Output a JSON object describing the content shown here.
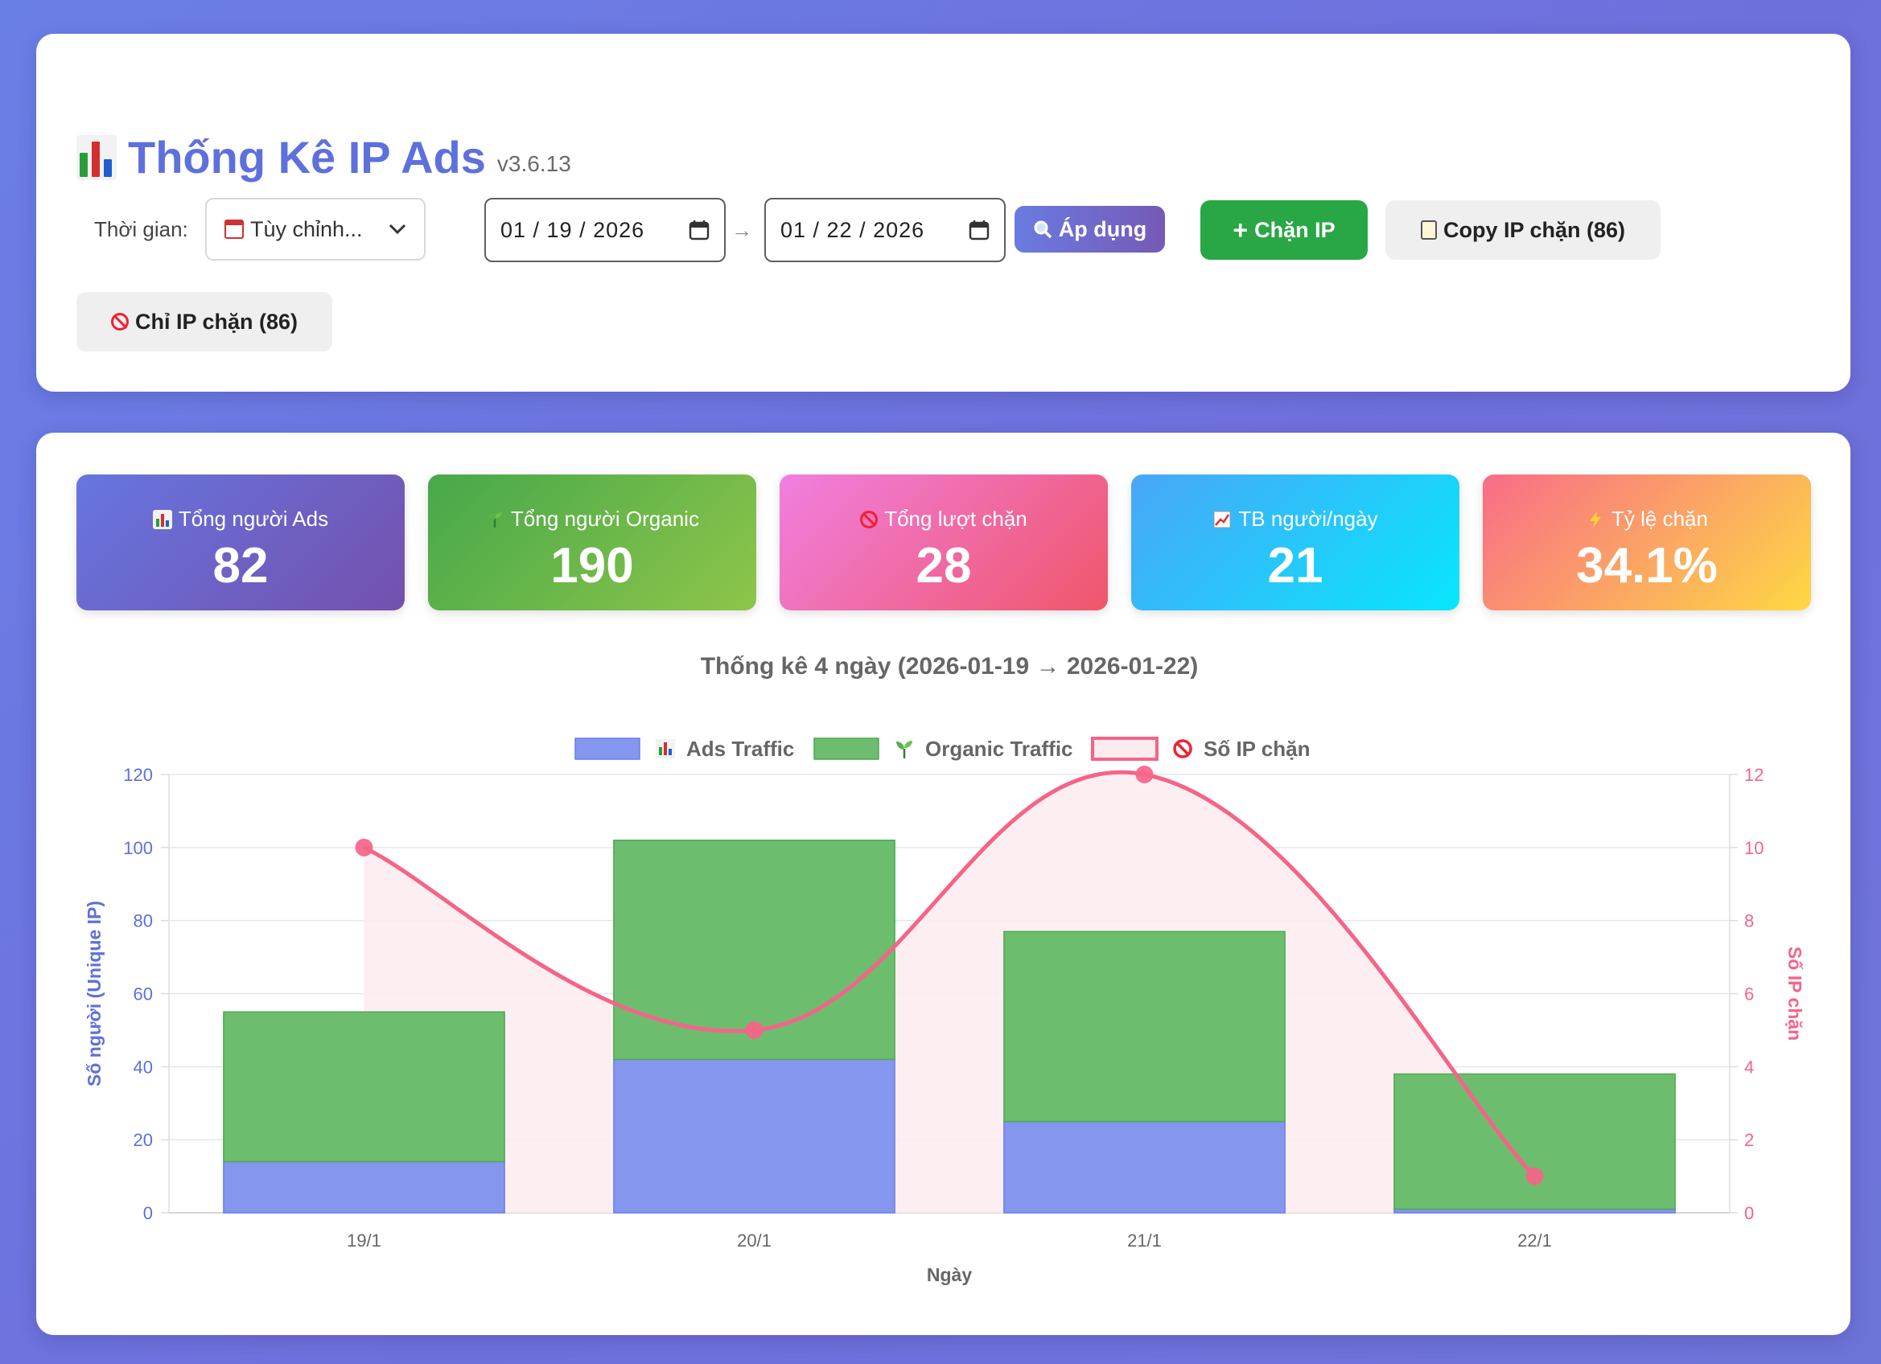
{
  "header": {
    "title": "Thống Kê IP Ads",
    "version": "v3.6.13",
    "time_label": "Thời gian:",
    "range_select": "Tùy chỉnh...",
    "date_from": "01 / 19 / 2026",
    "date_to": "01 / 22 / 2026",
    "apply_label": "Áp dụng",
    "block_ip_label": "Chặn IP",
    "copy_label": "Copy IP chặn (86)",
    "only_blocked_label": "Chỉ IP chặn (86)"
  },
  "stats": [
    {
      "label": "Tổng người Ads",
      "value": "82",
      "icon": "bar-chart-icon"
    },
    {
      "label": "Tổng người Organic",
      "value": "190",
      "icon": "seedling-icon"
    },
    {
      "label": "Tổng lượt chặn",
      "value": "28",
      "icon": "ban-icon"
    },
    {
      "label": "TB người/ngày",
      "value": "21",
      "icon": "trend-up-icon"
    },
    {
      "label": "Tỷ lệ chặn",
      "value": "34.1%",
      "icon": "lightning-icon"
    }
  ],
  "colors": {
    "ads": "#8496ee",
    "organic": "#6dbd6f",
    "blocked": "#f56488",
    "blocked_fill": "#fdecef",
    "title": "#5e70dc"
  },
  "chart_data": {
    "type": "bar",
    "title": "Thống kê 4 ngày (2026-01-19 → 2026-01-22)",
    "categories": [
      "19/1",
      "20/1",
      "21/1",
      "22/1"
    ],
    "stacked": true,
    "series": [
      {
        "name": "Ads Traffic",
        "type": "bar",
        "axis": "left",
        "values": [
          14,
          42,
          25,
          1
        ]
      },
      {
        "name": "Organic Traffic",
        "type": "bar",
        "axis": "left",
        "values": [
          41,
          60,
          52,
          37
        ]
      },
      {
        "name": "Số IP chặn",
        "type": "line",
        "axis": "right",
        "filled": true,
        "smooth": true,
        "values": [
          10,
          5,
          12,
          1
        ]
      }
    ],
    "xlabel": "Ngày",
    "ylabel": "Số người (Unique IP)",
    "y2label": "Số IP chặn",
    "ylim": [
      0,
      120
    ],
    "y2lim": [
      0,
      12
    ],
    "yticks": [
      0,
      20,
      40,
      60,
      80,
      100,
      120
    ],
    "y2ticks": [
      0,
      2,
      4,
      6,
      8,
      10,
      12
    ],
    "legend_position": "top",
    "grid": true
  }
}
